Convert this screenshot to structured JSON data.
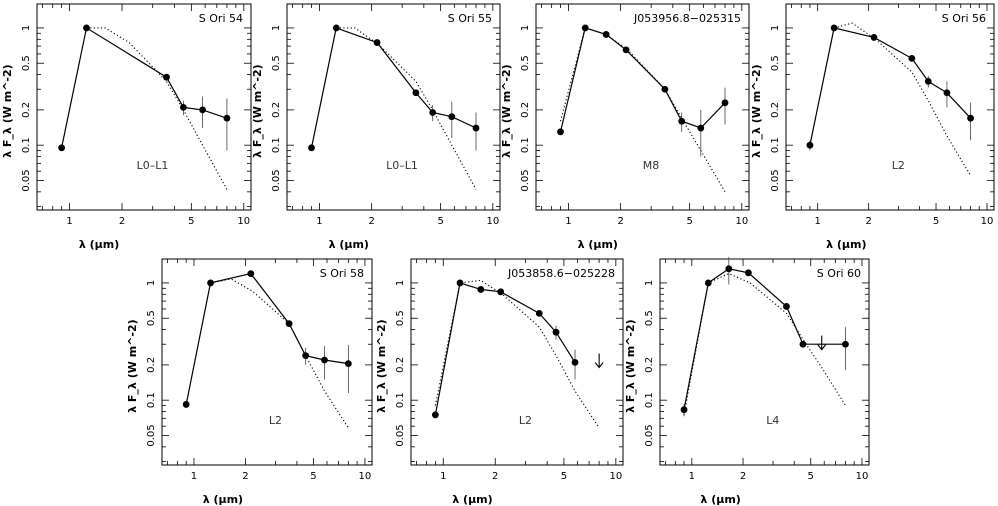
{
  "chart_data": [
    {
      "type": "line",
      "title": "S Ori 54",
      "spectral_type": "L0–L1",
      "xlabel": "λ (μm)",
      "ylabel": "λ F_λ (W m^-2)",
      "xscale": "log",
      "yscale": "log",
      "xlim": [
        0.65,
        11
      ],
      "ylim": [
        0.028,
        1.6
      ],
      "xticks": [
        1,
        2,
        5,
        10
      ],
      "yticks": [
        0.05,
        0.1,
        0.2,
        0.5,
        1
      ],
      "series": [
        {
          "role": "observed",
          "x": [
            0.9,
            1.25,
            3.6,
            4.5,
            5.8,
            8.0
          ],
          "y": [
            0.095,
            1.0,
            0.38,
            0.21,
            0.2,
            0.17
          ],
          "err": [
            0,
            0,
            0,
            0.03,
            0.06,
            0.08
          ]
        },
        {
          "role": "model",
          "x": [
            1.25,
            1.6,
            2.2,
            3.6,
            4.5,
            5.8,
            8.0
          ],
          "y": [
            1.0,
            1.0,
            0.75,
            0.35,
            0.2,
            0.1,
            0.042
          ]
        }
      ],
      "upper_limits": []
    },
    {
      "type": "line",
      "title": "S Ori 55",
      "spectral_type": "L0–L1",
      "xlabel": "λ (μm)",
      "ylabel": "λ F_λ (W m^-2)",
      "xscale": "log",
      "yscale": "log",
      "xlim": [
        0.65,
        11
      ],
      "ylim": [
        0.028,
        1.6
      ],
      "xticks": [
        1,
        2,
        5,
        10
      ],
      "yticks": [
        0.05,
        0.1,
        0.2,
        0.5,
        1
      ],
      "series": [
        {
          "role": "observed",
          "x": [
            0.9,
            1.25,
            2.15,
            3.6,
            4.5,
            5.8,
            8.0
          ],
          "y": [
            0.095,
            1.0,
            0.75,
            0.28,
            0.19,
            0.175,
            0.14
          ],
          "err": [
            0,
            0,
            0,
            0,
            0.03,
            0.06,
            0.05
          ]
        },
        {
          "role": "model",
          "x": [
            1.25,
            1.6,
            2.2,
            3.6,
            4.5,
            5.8,
            8.0
          ],
          "y": [
            1.0,
            1.0,
            0.72,
            0.35,
            0.2,
            0.1,
            0.042
          ]
        }
      ],
      "upper_limits": []
    },
    {
      "type": "line",
      "title": "J053956.8−025315",
      "spectral_type": "M8",
      "xlabel": "λ (μm)",
      "ylabel": "λ F_λ (W m^-2)",
      "xscale": "log",
      "yscale": "log",
      "xlim": [
        0.65,
        11
      ],
      "ylim": [
        0.028,
        1.6
      ],
      "xticks": [
        1,
        2,
        5,
        10
      ],
      "yticks": [
        0.05,
        0.1,
        0.2,
        0.5,
        1
      ],
      "series": [
        {
          "role": "observed",
          "x": [
            0.9,
            1.25,
            1.65,
            2.15,
            3.6,
            4.5,
            5.8,
            8.0
          ],
          "y": [
            0.13,
            1.0,
            0.88,
            0.65,
            0.3,
            0.16,
            0.14,
            0.23
          ],
          "err": [
            0,
            0,
            0,
            0,
            0,
            0.03,
            0.06,
            0.08
          ]
        },
        {
          "role": "model",
          "x": [
            0.9,
            1.25,
            1.65,
            2.2,
            3.6,
            4.5,
            5.8,
            8.0
          ],
          "y": [
            0.16,
            1.0,
            0.88,
            0.65,
            0.3,
            0.17,
            0.09,
            0.04
          ]
        }
      ],
      "upper_limits": []
    },
    {
      "type": "line",
      "title": "S Ori 56",
      "spectral_type": "L2",
      "xlabel": "λ (μm)",
      "ylabel": "λ F_λ (W m^-2)",
      "xscale": "log",
      "yscale": "log",
      "xlim": [
        0.65,
        11
      ],
      "ylim": [
        0.028,
        1.6
      ],
      "xticks": [
        1,
        2,
        5,
        10
      ],
      "yticks": [
        0.05,
        0.1,
        0.2,
        0.5,
        1
      ],
      "series": [
        {
          "role": "observed",
          "x": [
            0.9,
            1.25,
            2.15,
            3.6,
            4.5,
            5.8,
            8.0
          ],
          "y": [
            0.1,
            1.0,
            0.83,
            0.55,
            0.35,
            0.28,
            0.17
          ],
          "err": [
            0.01,
            0,
            0,
            0,
            0.04,
            0.07,
            0.06
          ]
        },
        {
          "role": "model",
          "x": [
            1.25,
            1.6,
            2.2,
            3.6,
            4.5,
            5.8,
            8.0
          ],
          "y": [
            1.0,
            1.1,
            0.8,
            0.42,
            0.24,
            0.12,
            0.055
          ]
        }
      ],
      "upper_limits": []
    },
    {
      "type": "line",
      "title": "S Ori 58",
      "spectral_type": "L2",
      "xlabel": "λ (μm)",
      "ylabel": "λ F_λ (W m^-2)",
      "xscale": "log",
      "yscale": "log",
      "xlim": [
        0.65,
        11
      ],
      "ylim": [
        0.028,
        1.6
      ],
      "xticks": [
        1,
        2,
        5,
        10
      ],
      "yticks": [
        0.05,
        0.1,
        0.2,
        0.5,
        1
      ],
      "series": [
        {
          "role": "observed",
          "x": [
            0.9,
            1.25,
            2.15,
            3.6,
            4.5,
            5.8,
            8.0
          ],
          "y": [
            0.092,
            1.0,
            1.2,
            0.45,
            0.24,
            0.22,
            0.205
          ],
          "err": [
            0,
            0,
            0,
            0,
            0.04,
            0.07,
            0.09
          ]
        },
        {
          "role": "model",
          "x": [
            1.25,
            1.65,
            2.2,
            3.6,
            4.5,
            5.8,
            8.0
          ],
          "y": [
            1.0,
            1.08,
            0.85,
            0.45,
            0.24,
            0.12,
            0.058
          ]
        }
      ],
      "upper_limits": []
    },
    {
      "type": "line",
      "title": "J053858.6−025228",
      "spectral_type": "L2",
      "xlabel": "λ (μm)",
      "ylabel": "λ F_λ (W m^-2)",
      "xscale": "log",
      "yscale": "log",
      "xlim": [
        0.65,
        11
      ],
      "ylim": [
        0.028,
        1.6
      ],
      "xticks": [
        1,
        2,
        5,
        10
      ],
      "yticks": [
        0.05,
        0.1,
        0.2,
        0.5,
        1
      ],
      "series": [
        {
          "role": "observed",
          "x": [
            0.9,
            1.25,
            1.65,
            2.15,
            3.6,
            4.5,
            5.8
          ],
          "y": [
            0.075,
            1.0,
            0.88,
            0.84,
            0.55,
            0.38,
            0.21
          ],
          "err": [
            0,
            0,
            0,
            0,
            0,
            0.05,
            0.06
          ]
        },
        {
          "role": "model",
          "x": [
            0.9,
            1.25,
            1.65,
            2.2,
            3.6,
            4.5,
            5.8,
            8.0
          ],
          "y": [
            0.09,
            1.0,
            1.05,
            0.8,
            0.42,
            0.24,
            0.12,
            0.058
          ]
        }
      ],
      "upper_limits": [
        {
          "x": 8.0,
          "y": 0.19
        }
      ]
    },
    {
      "type": "line",
      "title": "S Ori 60",
      "spectral_type": "L4",
      "xlabel": "λ (μm)",
      "ylabel": "λ F_λ (W m^-2)",
      "xscale": "log",
      "yscale": "log",
      "xlim": [
        0.65,
        11
      ],
      "ylim": [
        0.028,
        1.6
      ],
      "xticks": [
        1,
        2,
        5,
        10
      ],
      "yticks": [
        0.05,
        0.1,
        0.2,
        0.5,
        1
      ],
      "series": [
        {
          "role": "observed",
          "x": [
            0.9,
            1.25,
            1.65,
            2.15,
            3.6,
            4.5,
            8.0
          ],
          "y": [
            0.083,
            1.0,
            1.32,
            1.22,
            0.63,
            0.3,
            0.3
          ],
          "err": [
            0.01,
            0,
            0.35,
            0,
            0,
            0,
            0.12
          ]
        },
        {
          "role": "model",
          "x": [
            0.9,
            1.25,
            1.65,
            2.2,
            3.6,
            4.5,
            5.8,
            8.0
          ],
          "y": [
            0.075,
            1.0,
            1.2,
            1.0,
            0.55,
            0.33,
            0.19,
            0.09
          ]
        }
      ],
      "upper_limits": [
        {
          "x": 5.8,
          "y": 0.27
        }
      ]
    }
  ]
}
